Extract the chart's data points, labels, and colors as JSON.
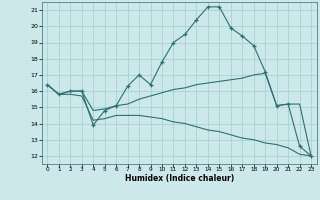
{
  "xlabel": "Humidex (Indice chaleur)",
  "bg_color": "#cce8ea",
  "grid_color": "#9ecfcf",
  "line_color": "#2d7070",
  "xlim": [
    -0.5,
    23.5
  ],
  "ylim": [
    11.5,
    21.5
  ],
  "yticks": [
    12,
    13,
    14,
    15,
    16,
    17,
    18,
    19,
    20,
    21
  ],
  "xticks": [
    0,
    1,
    2,
    3,
    4,
    5,
    6,
    7,
    8,
    9,
    10,
    11,
    12,
    13,
    14,
    15,
    16,
    17,
    18,
    19,
    20,
    21,
    22,
    23
  ],
  "series": [
    {
      "x": [
        0,
        1,
        2,
        3,
        4,
        5,
        6,
        7,
        8,
        9,
        10,
        11,
        12,
        13,
        14,
        15,
        16,
        17,
        18,
        19,
        20,
        21,
        22,
        23
      ],
      "y": [
        16.4,
        15.8,
        16.0,
        16.0,
        13.9,
        14.8,
        15.1,
        16.3,
        17.0,
        16.4,
        17.8,
        19.0,
        19.5,
        20.4,
        21.2,
        21.2,
        19.9,
        19.4,
        18.8,
        17.2,
        15.1,
        15.2,
        12.6,
        12.0
      ],
      "markers": true
    },
    {
      "x": [
        0,
        1,
        2,
        3,
        4,
        5,
        6,
        7,
        8,
        9,
        10,
        11,
        12,
        13,
        14,
        15,
        16,
        17,
        18,
        19,
        20,
        21,
        22,
        23
      ],
      "y": [
        16.4,
        15.8,
        16.0,
        16.0,
        14.8,
        14.9,
        15.1,
        15.2,
        15.5,
        15.7,
        15.9,
        16.1,
        16.2,
        16.4,
        16.5,
        16.6,
        16.7,
        16.8,
        17.0,
        17.1,
        15.1,
        15.2,
        15.2,
        12.0
      ],
      "markers": false
    },
    {
      "x": [
        0,
        1,
        2,
        3,
        4,
        5,
        6,
        7,
        8,
        9,
        10,
        11,
        12,
        13,
        14,
        15,
        16,
        17,
        18,
        19,
        20,
        21,
        22,
        23
      ],
      "y": [
        16.4,
        15.8,
        15.8,
        15.7,
        14.2,
        14.3,
        14.5,
        14.5,
        14.5,
        14.4,
        14.3,
        14.1,
        14.0,
        13.8,
        13.6,
        13.5,
        13.3,
        13.1,
        13.0,
        12.8,
        12.7,
        12.5,
        12.1,
        12.0
      ],
      "markers": false
    }
  ]
}
